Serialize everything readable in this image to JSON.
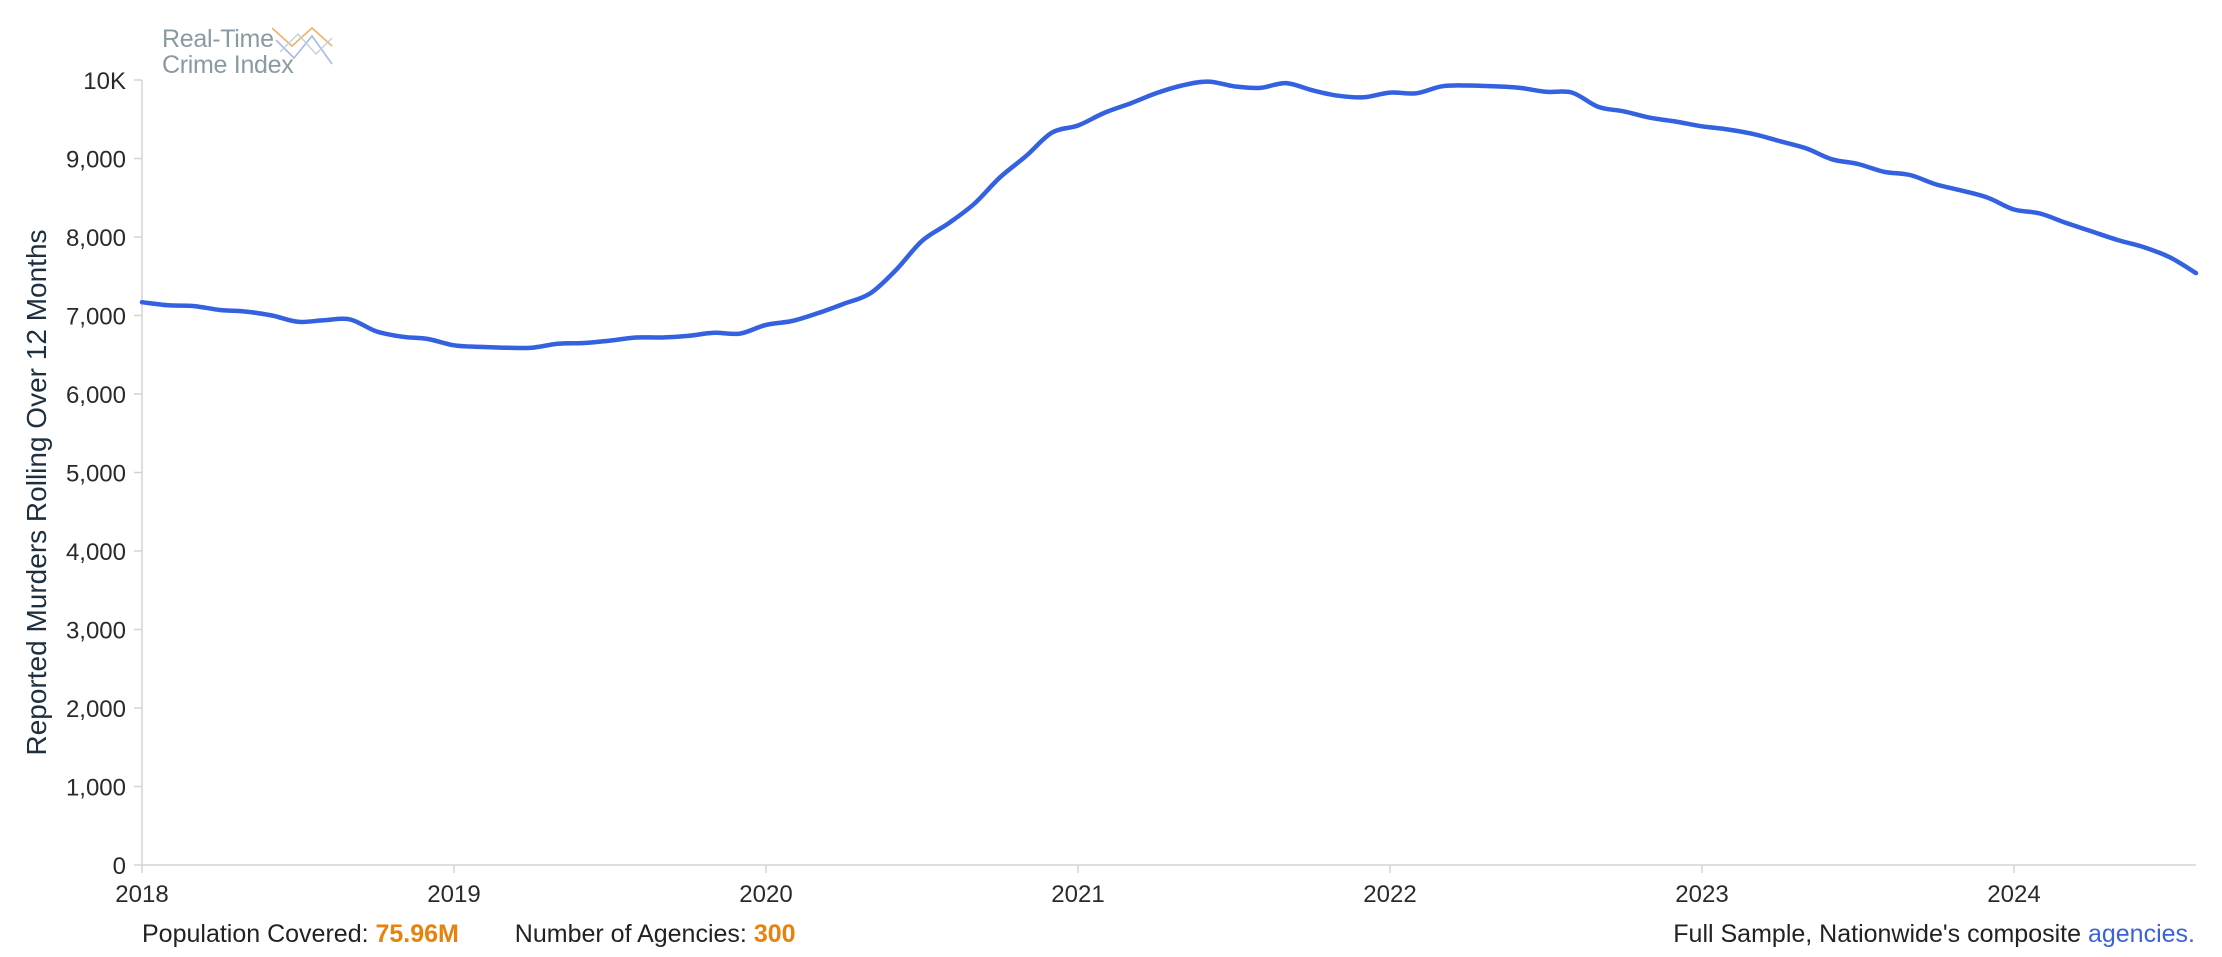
{
  "logo": {
    "line1": "Real-Time",
    "line2": "Crime Index"
  },
  "chart_data": {
    "type": "line",
    "ylabel": "Reported Murders Rolling Over 12 Months",
    "xlabel": "",
    "ylim": [
      0,
      10000
    ],
    "xlim": [
      "2018-01",
      "2024-08"
    ],
    "yticks": [
      {
        "value": 0,
        "label": "0"
      },
      {
        "value": 1000,
        "label": "1,000"
      },
      {
        "value": 2000,
        "label": "2,000"
      },
      {
        "value": 3000,
        "label": "3,000"
      },
      {
        "value": 4000,
        "label": "4,000"
      },
      {
        "value": 5000,
        "label": "5,000"
      },
      {
        "value": 6000,
        "label": "6,000"
      },
      {
        "value": 7000,
        "label": "7,000"
      },
      {
        "value": 8000,
        "label": "8,000"
      },
      {
        "value": 9000,
        "label": "9,000"
      },
      {
        "value": 10000,
        "label": "10K"
      }
    ],
    "xticks": [
      {
        "value": "2018-01",
        "label": "2018"
      },
      {
        "value": "2019-01",
        "label": "2019"
      },
      {
        "value": "2020-01",
        "label": "2020"
      },
      {
        "value": "2021-01",
        "label": "2021"
      },
      {
        "value": "2022-01",
        "label": "2022"
      },
      {
        "value": "2023-01",
        "label": "2023"
      },
      {
        "value": "2024-01",
        "label": "2024"
      }
    ],
    "grid": false,
    "line_color": "#3361e0",
    "series": [
      {
        "x": [
          "2018-01",
          "2018-02",
          "2018-03",
          "2018-04",
          "2018-05",
          "2018-06",
          "2018-07",
          "2018-08",
          "2018-09",
          "2018-10",
          "2018-11",
          "2018-12",
          "2019-01",
          "2019-02",
          "2019-03",
          "2019-04",
          "2019-05",
          "2019-06",
          "2019-07",
          "2019-08",
          "2019-09",
          "2019-10",
          "2019-11",
          "2019-12",
          "2020-01",
          "2020-02",
          "2020-03",
          "2020-04",
          "2020-05",
          "2020-06",
          "2020-07",
          "2020-08",
          "2020-09",
          "2020-10",
          "2020-11",
          "2020-12",
          "2021-01",
          "2021-02",
          "2021-03",
          "2021-04",
          "2021-05",
          "2021-06",
          "2021-07",
          "2021-08",
          "2021-09",
          "2021-10",
          "2021-11",
          "2021-12",
          "2022-01",
          "2022-02",
          "2022-03",
          "2022-04",
          "2022-05",
          "2022-06",
          "2022-07",
          "2022-08",
          "2022-09",
          "2022-10",
          "2022-11",
          "2022-12",
          "2023-01",
          "2023-02",
          "2023-03",
          "2023-04",
          "2023-05",
          "2023-06",
          "2023-07",
          "2023-08",
          "2023-09",
          "2023-10",
          "2023-11",
          "2023-12",
          "2024-01",
          "2024-02",
          "2024-03",
          "2024-04",
          "2024-05",
          "2024-06",
          "2024-07",
          "2024-08"
        ],
        "values": [
          7170,
          7130,
          7120,
          7070,
          7050,
          7000,
          6920,
          6940,
          6950,
          6800,
          6730,
          6700,
          6620,
          6600,
          6590,
          6590,
          6640,
          6650,
          6680,
          6720,
          6720,
          6740,
          6780,
          6770,
          6880,
          6930,
          7030,
          7150,
          7280,
          7580,
          7950,
          8170,
          8420,
          8760,
          9030,
          9330,
          9420,
          9580,
          9700,
          9830,
          9930,
          9980,
          9920,
          9900,
          9960,
          9870,
          9800,
          9780,
          9840,
          9830,
          9920,
          9930,
          9920,
          9900,
          9850,
          9840,
          9660,
          9600,
          9520,
          9470,
          9410,
          9370,
          9310,
          9220,
          9130,
          8990,
          8930,
          8830,
          8790,
          8670,
          8590,
          8500,
          8350,
          8300,
          8180,
          8070,
          7960,
          7870,
          7740,
          7540
        ]
      }
    ]
  },
  "footer": {
    "population_label": "Population Covered:",
    "population_value": "75.96M",
    "agencies_label": "Number of Agencies:",
    "agencies_value": "300",
    "sample_text": "Full Sample, Nationwide's composite",
    "agencies_link": "agencies."
  }
}
